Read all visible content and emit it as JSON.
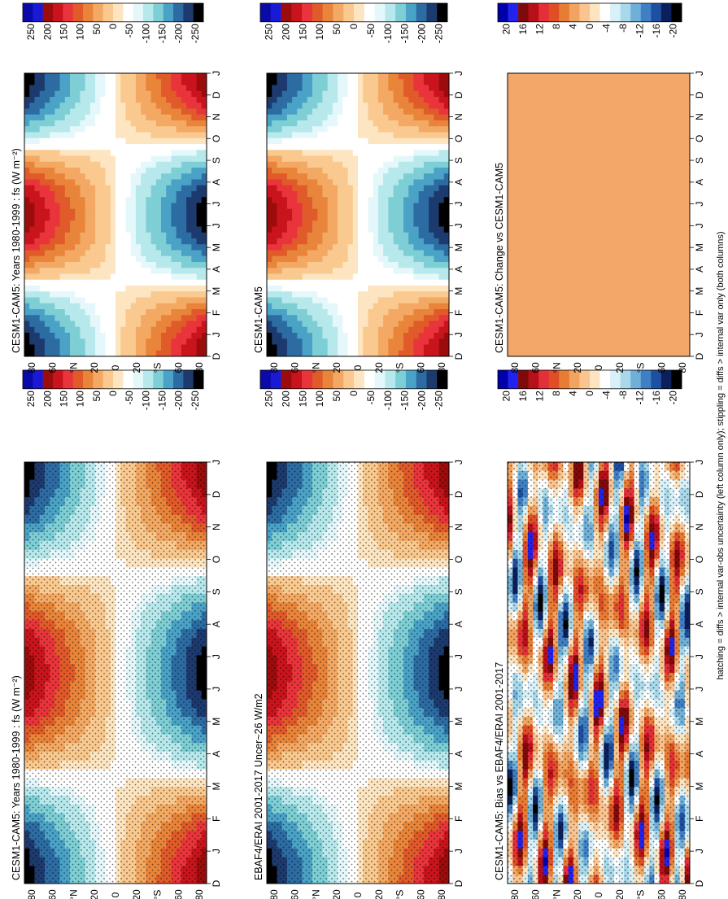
{
  "footnote": "hatching = diffs > internal var-obs uncertainty (left column only); stippling = diffs > internal var only (both columns)",
  "colors": {
    "full_scale": [
      "#000000",
      "#1d3a6e",
      "#2c6ca3",
      "#4aa3c7",
      "#7ecfd5",
      "#b7e9ec",
      "#e4f8fb",
      "#ffffff",
      "#fce5c0",
      "#f9c98f",
      "#f3a963",
      "#e9853a",
      "#e05a2a",
      "#e8343a",
      "#c9141d",
      "#9c0c0c",
      "#1a1ad6",
      "#0a0aa8"
    ],
    "diff_scale": [
      "#000000",
      "#0b1f5c",
      "#1e4fa0",
      "#3f7fc4",
      "#6fb0d8",
      "#a8d8ea",
      "#d8f0f8",
      "#ffffff",
      "#fde4c0",
      "#f9c490",
      "#f2a35f",
      "#e97c35",
      "#e04e26",
      "#e32f37",
      "#b8101a",
      "#7f0a0a",
      "#2222ee",
      "#0000aa"
    ],
    "flat_change": "#f3a86a",
    "stipple": "#000000"
  },
  "chart_data": [
    {
      "panel": "top-left",
      "type": "heatmap",
      "title": "CESM1-CAM5: Years 1980-1999 : fs (W m⁻²)",
      "x": [
        "D",
        "J",
        "F",
        "M",
        "A",
        "M",
        "J",
        "J",
        "A",
        "S",
        "O",
        "N",
        "D",
        "J"
      ],
      "y_ticks": [
        "80",
        "60",
        "°N",
        "20",
        "0",
        "20",
        "°S",
        "60",
        "80"
      ],
      "y_range": [
        -90,
        90
      ],
      "colorbar_ticks": [
        "250",
        "200",
        "150",
        "100",
        "50",
        "0",
        "-50",
        "-100",
        "-150",
        "-200",
        "-250"
      ],
      "field": "insolation-like seasonal cycle",
      "stippled": true
    },
    {
      "panel": "top-right",
      "type": "heatmap",
      "title": "CESM1-CAM5: Years 1980-1999 : fs (W m⁻²)",
      "x": [
        "D",
        "J",
        "F",
        "M",
        "A",
        "M",
        "J",
        "J",
        "A",
        "S",
        "O",
        "N",
        "D",
        "J"
      ],
      "y_ticks": [
        "80",
        "60",
        "°N",
        "20",
        "0",
        "20",
        "°S",
        "60",
        "80"
      ],
      "y_range": [
        -90,
        90
      ],
      "colorbar_ticks": [
        "250",
        "200",
        "150",
        "100",
        "50",
        "0",
        "-50",
        "-100",
        "-150",
        "-200",
        "-250"
      ],
      "field": "insolation-like seasonal cycle",
      "stippled": false
    },
    {
      "panel": "middle-left",
      "type": "heatmap",
      "title": "EBAF4/ERAI 2001-2017 Uncer~26 W/m2",
      "x": [
        "D",
        "J",
        "F",
        "M",
        "A",
        "M",
        "J",
        "J",
        "A",
        "S",
        "O",
        "N",
        "D",
        "J"
      ],
      "y_ticks": [
        "80",
        "60",
        "°N",
        "20",
        "0",
        "20",
        "°S",
        "60",
        "80"
      ],
      "y_range": [
        -90,
        90
      ],
      "colorbar_ticks": [
        "250",
        "200",
        "150",
        "100",
        "50",
        "0",
        "-50",
        "-100",
        "-150",
        "-200",
        "-250"
      ],
      "field": "insolation-like seasonal cycle",
      "stippled": true
    },
    {
      "panel": "middle-right",
      "type": "heatmap",
      "title": "CESM1-CAM5",
      "x": [
        "D",
        "J",
        "F",
        "M",
        "A",
        "M",
        "J",
        "J",
        "A",
        "S",
        "O",
        "N",
        "D",
        "J"
      ],
      "y_ticks": [
        "80",
        "60",
        "°N",
        "20",
        "0",
        "20",
        "°S",
        "60",
        "80"
      ],
      "y_range": [
        -90,
        90
      ],
      "colorbar_ticks": [
        "250",
        "200",
        "150",
        "100",
        "50",
        "0",
        "-50",
        "-100",
        "-150",
        "-200",
        "-250"
      ],
      "field": "insolation-like seasonal cycle",
      "stippled": false
    },
    {
      "panel": "bottom-left",
      "type": "heatmap",
      "title": "CESM1-CAM5: Bias vs EBAF4/ERAI 2001-2017",
      "x": [
        "D",
        "J",
        "F",
        "M",
        "A",
        "M",
        "J",
        "J",
        "A",
        "S",
        "O",
        "N",
        "D",
        "J"
      ],
      "y_ticks": [
        "80",
        "60",
        "°N",
        "20",
        "0",
        "20",
        "°S",
        "60",
        "80"
      ],
      "y_range": [
        -90,
        90
      ],
      "colorbar_ticks": [
        "20",
        "16",
        "12",
        "8",
        "4",
        "0",
        "-4",
        "-8",
        "-12",
        "-16",
        "-20"
      ],
      "field": "bias",
      "stippled": true
    },
    {
      "panel": "bottom-right",
      "type": "heatmap",
      "title": "CESM1-CAM5: Change vs CESM1-CAM5",
      "x": [
        "D",
        "J",
        "F",
        "M",
        "A",
        "M",
        "J",
        "J",
        "A",
        "S",
        "O",
        "N",
        "D",
        "J"
      ],
      "y_ticks": [
        "80",
        "60",
        "°N",
        "20",
        "0",
        "20",
        "°S",
        "60",
        "80"
      ],
      "y_range": [
        -90,
        90
      ],
      "colorbar_ticks": [
        "20",
        "16",
        "12",
        "8",
        "4",
        "0",
        "-4",
        "-8",
        "-12",
        "-16",
        "-20"
      ],
      "field": "flat",
      "stippled": false
    }
  ]
}
